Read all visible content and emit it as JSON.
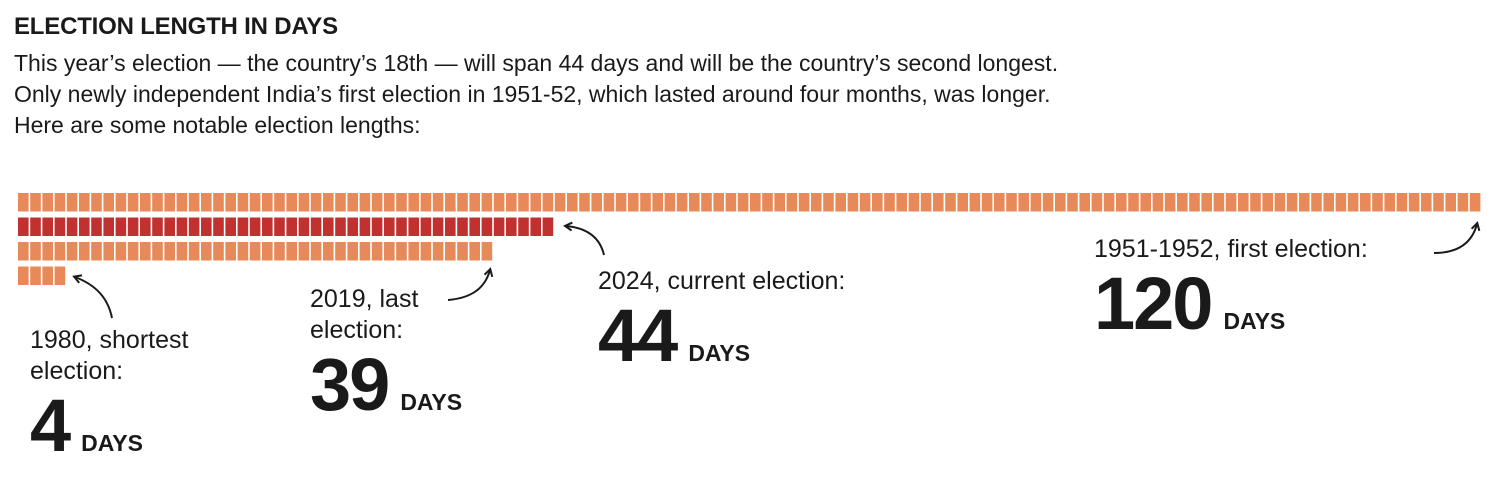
{
  "header": {
    "title": "ELECTION LENGTH IN DAYS",
    "subtitle_lines": [
      "This year’s election — the country’s 18th — will span 44 days and will be the country’s second longest.",
      "Only newly independent India’s first election in 1951-52, which lasted around four months, was longer.",
      "Here are some notable election lengths:"
    ]
  },
  "colors": {
    "default_block": "#e8895a",
    "highlight_block": "#c0312f",
    "arrow": "#1a1a1a"
  },
  "chart_data": {
    "type": "bar",
    "orientation": "horizontal",
    "encoding": "one block per day",
    "title": "ELECTION LENGTH IN DAYS",
    "categories": [
      "1951-1952",
      "2024",
      "2019",
      "1980"
    ],
    "values": [
      120,
      44,
      39,
      4
    ],
    "highlight": "2024",
    "xlabel": "",
    "ylabel": "",
    "grid": false
  },
  "callouts": [
    {
      "label_lines": [
        "1980, shortest",
        "election:"
      ],
      "value": "4",
      "unit": "DAYS"
    },
    {
      "label_lines": [
        "2019, last",
        "election:"
      ],
      "value": "39",
      "unit": "DAYS"
    },
    {
      "label_lines": [
        "2024, current election:"
      ],
      "value": "44",
      "unit": "DAYS"
    },
    {
      "label_lines": [
        "1951-1952, first election:"
      ],
      "value": "120",
      "unit": "DAYS"
    }
  ]
}
